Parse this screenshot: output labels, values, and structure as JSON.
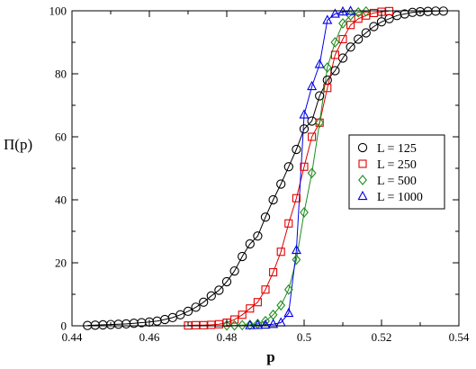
{
  "chart_data": {
    "type": "scatter",
    "title": "",
    "xlabel": "p",
    "ylabel": "Π(p)",
    "xlim": [
      0.44,
      0.54
    ],
    "ylim": [
      0,
      100
    ],
    "xticks": [
      "0.44",
      "0.46",
      "0.48",
      "0.5",
      "0.52",
      "0.54"
    ],
    "yticks": [
      "0",
      "20",
      "40",
      "60",
      "80",
      "100"
    ],
    "grid": false,
    "legend_position": "right-center",
    "series": [
      {
        "name": "L = 125",
        "marker": "circle",
        "color": "#000000",
        "points": [
          [
            0.444,
            0.1
          ],
          [
            0.446,
            0.2
          ],
          [
            0.448,
            0.3
          ],
          [
            0.45,
            0.4
          ],
          [
            0.452,
            0.5
          ],
          [
            0.454,
            0.6
          ],
          [
            0.456,
            0.8
          ],
          [
            0.458,
            1.0
          ],
          [
            0.46,
            1.2
          ],
          [
            0.462,
            1.5
          ],
          [
            0.464,
            2.0
          ],
          [
            0.466,
            2.6
          ],
          [
            0.468,
            3.5
          ],
          [
            0.47,
            4.6
          ],
          [
            0.472,
            5.9
          ],
          [
            0.474,
            7.5
          ],
          [
            0.476,
            9.5
          ],
          [
            0.478,
            11.3
          ],
          [
            0.48,
            14.0
          ],
          [
            0.482,
            17.4
          ],
          [
            0.484,
            22.0
          ],
          [
            0.486,
            26.0
          ],
          [
            0.488,
            28.5
          ],
          [
            0.49,
            34.5
          ],
          [
            0.492,
            40.0
          ],
          [
            0.494,
            45.0
          ],
          [
            0.496,
            50.5
          ],
          [
            0.498,
            56.0
          ],
          [
            0.5,
            62.5
          ],
          [
            0.502,
            65.0
          ],
          [
            0.504,
            73.0
          ],
          [
            0.506,
            78.0
          ],
          [
            0.508,
            81.0
          ],
          [
            0.51,
            85.0
          ],
          [
            0.512,
            88.5
          ],
          [
            0.514,
            91.0
          ],
          [
            0.516,
            93.0
          ],
          [
            0.518,
            95.0
          ],
          [
            0.52,
            96.5
          ],
          [
            0.522,
            97.5
          ],
          [
            0.524,
            98.5
          ],
          [
            0.526,
            99.0
          ],
          [
            0.528,
            99.5
          ],
          [
            0.53,
            99.7
          ],
          [
            0.532,
            99.8
          ],
          [
            0.534,
            99.9
          ],
          [
            0.536,
            99.9
          ]
        ]
      },
      {
        "name": "L = 250",
        "marker": "square",
        "color": "#e00000",
        "points": [
          [
            0.47,
            0.1
          ],
          [
            0.472,
            0.2
          ],
          [
            0.474,
            0.2
          ],
          [
            0.476,
            0.3
          ],
          [
            0.478,
            0.5
          ],
          [
            0.48,
            1.0
          ],
          [
            0.482,
            2.0
          ],
          [
            0.484,
            3.5
          ],
          [
            0.486,
            5.5
          ],
          [
            0.488,
            7.5
          ],
          [
            0.49,
            11.5
          ],
          [
            0.492,
            17.0
          ],
          [
            0.494,
            23.5
          ],
          [
            0.496,
            32.5
          ],
          [
            0.498,
            40.5
          ],
          [
            0.5,
            50.5
          ],
          [
            0.502,
            60.0
          ],
          [
            0.504,
            64.5
          ],
          [
            0.506,
            75.5
          ],
          [
            0.508,
            86.0
          ],
          [
            0.51,
            91.0
          ],
          [
            0.512,
            95.5
          ],
          [
            0.514,
            97.5
          ],
          [
            0.516,
            98.5
          ],
          [
            0.518,
            99.3
          ],
          [
            0.52,
            99.7
          ],
          [
            0.522,
            99.9
          ]
        ]
      },
      {
        "name": "L = 500",
        "marker": "diamond",
        "color": "#1e8c1e",
        "points": [
          [
            0.48,
            0.1
          ],
          [
            0.482,
            0.1
          ],
          [
            0.484,
            0.2
          ],
          [
            0.486,
            0.3
          ],
          [
            0.488,
            0.6
          ],
          [
            0.49,
            1.5
          ],
          [
            0.492,
            3.5
          ],
          [
            0.494,
            6.5
          ],
          [
            0.496,
            11.5
          ],
          [
            0.498,
            21.0
          ],
          [
            0.5,
            36.0
          ],
          [
            0.502,
            48.5
          ],
          [
            0.504,
            64.5
          ],
          [
            0.506,
            82.0
          ],
          [
            0.508,
            90.0
          ],
          [
            0.51,
            96.0
          ],
          [
            0.512,
            98.5
          ],
          [
            0.514,
            99.5
          ],
          [
            0.516,
            99.8
          ]
        ]
      },
      {
        "name": "L = 1000",
        "marker": "triangle",
        "color": "#0000e8",
        "points": [
          [
            0.486,
            0.1
          ],
          [
            0.488,
            0.2
          ],
          [
            0.49,
            0.3
          ],
          [
            0.492,
            0.5
          ],
          [
            0.494,
            1.0
          ],
          [
            0.496,
            4.0
          ],
          [
            0.498,
            24.0
          ],
          [
            0.5,
            67.0
          ],
          [
            0.502,
            76.0
          ],
          [
            0.504,
            83.0
          ],
          [
            0.506,
            97.0
          ],
          [
            0.508,
            99.0
          ],
          [
            0.51,
            99.7
          ],
          [
            0.512,
            99.9
          ]
        ]
      }
    ]
  }
}
